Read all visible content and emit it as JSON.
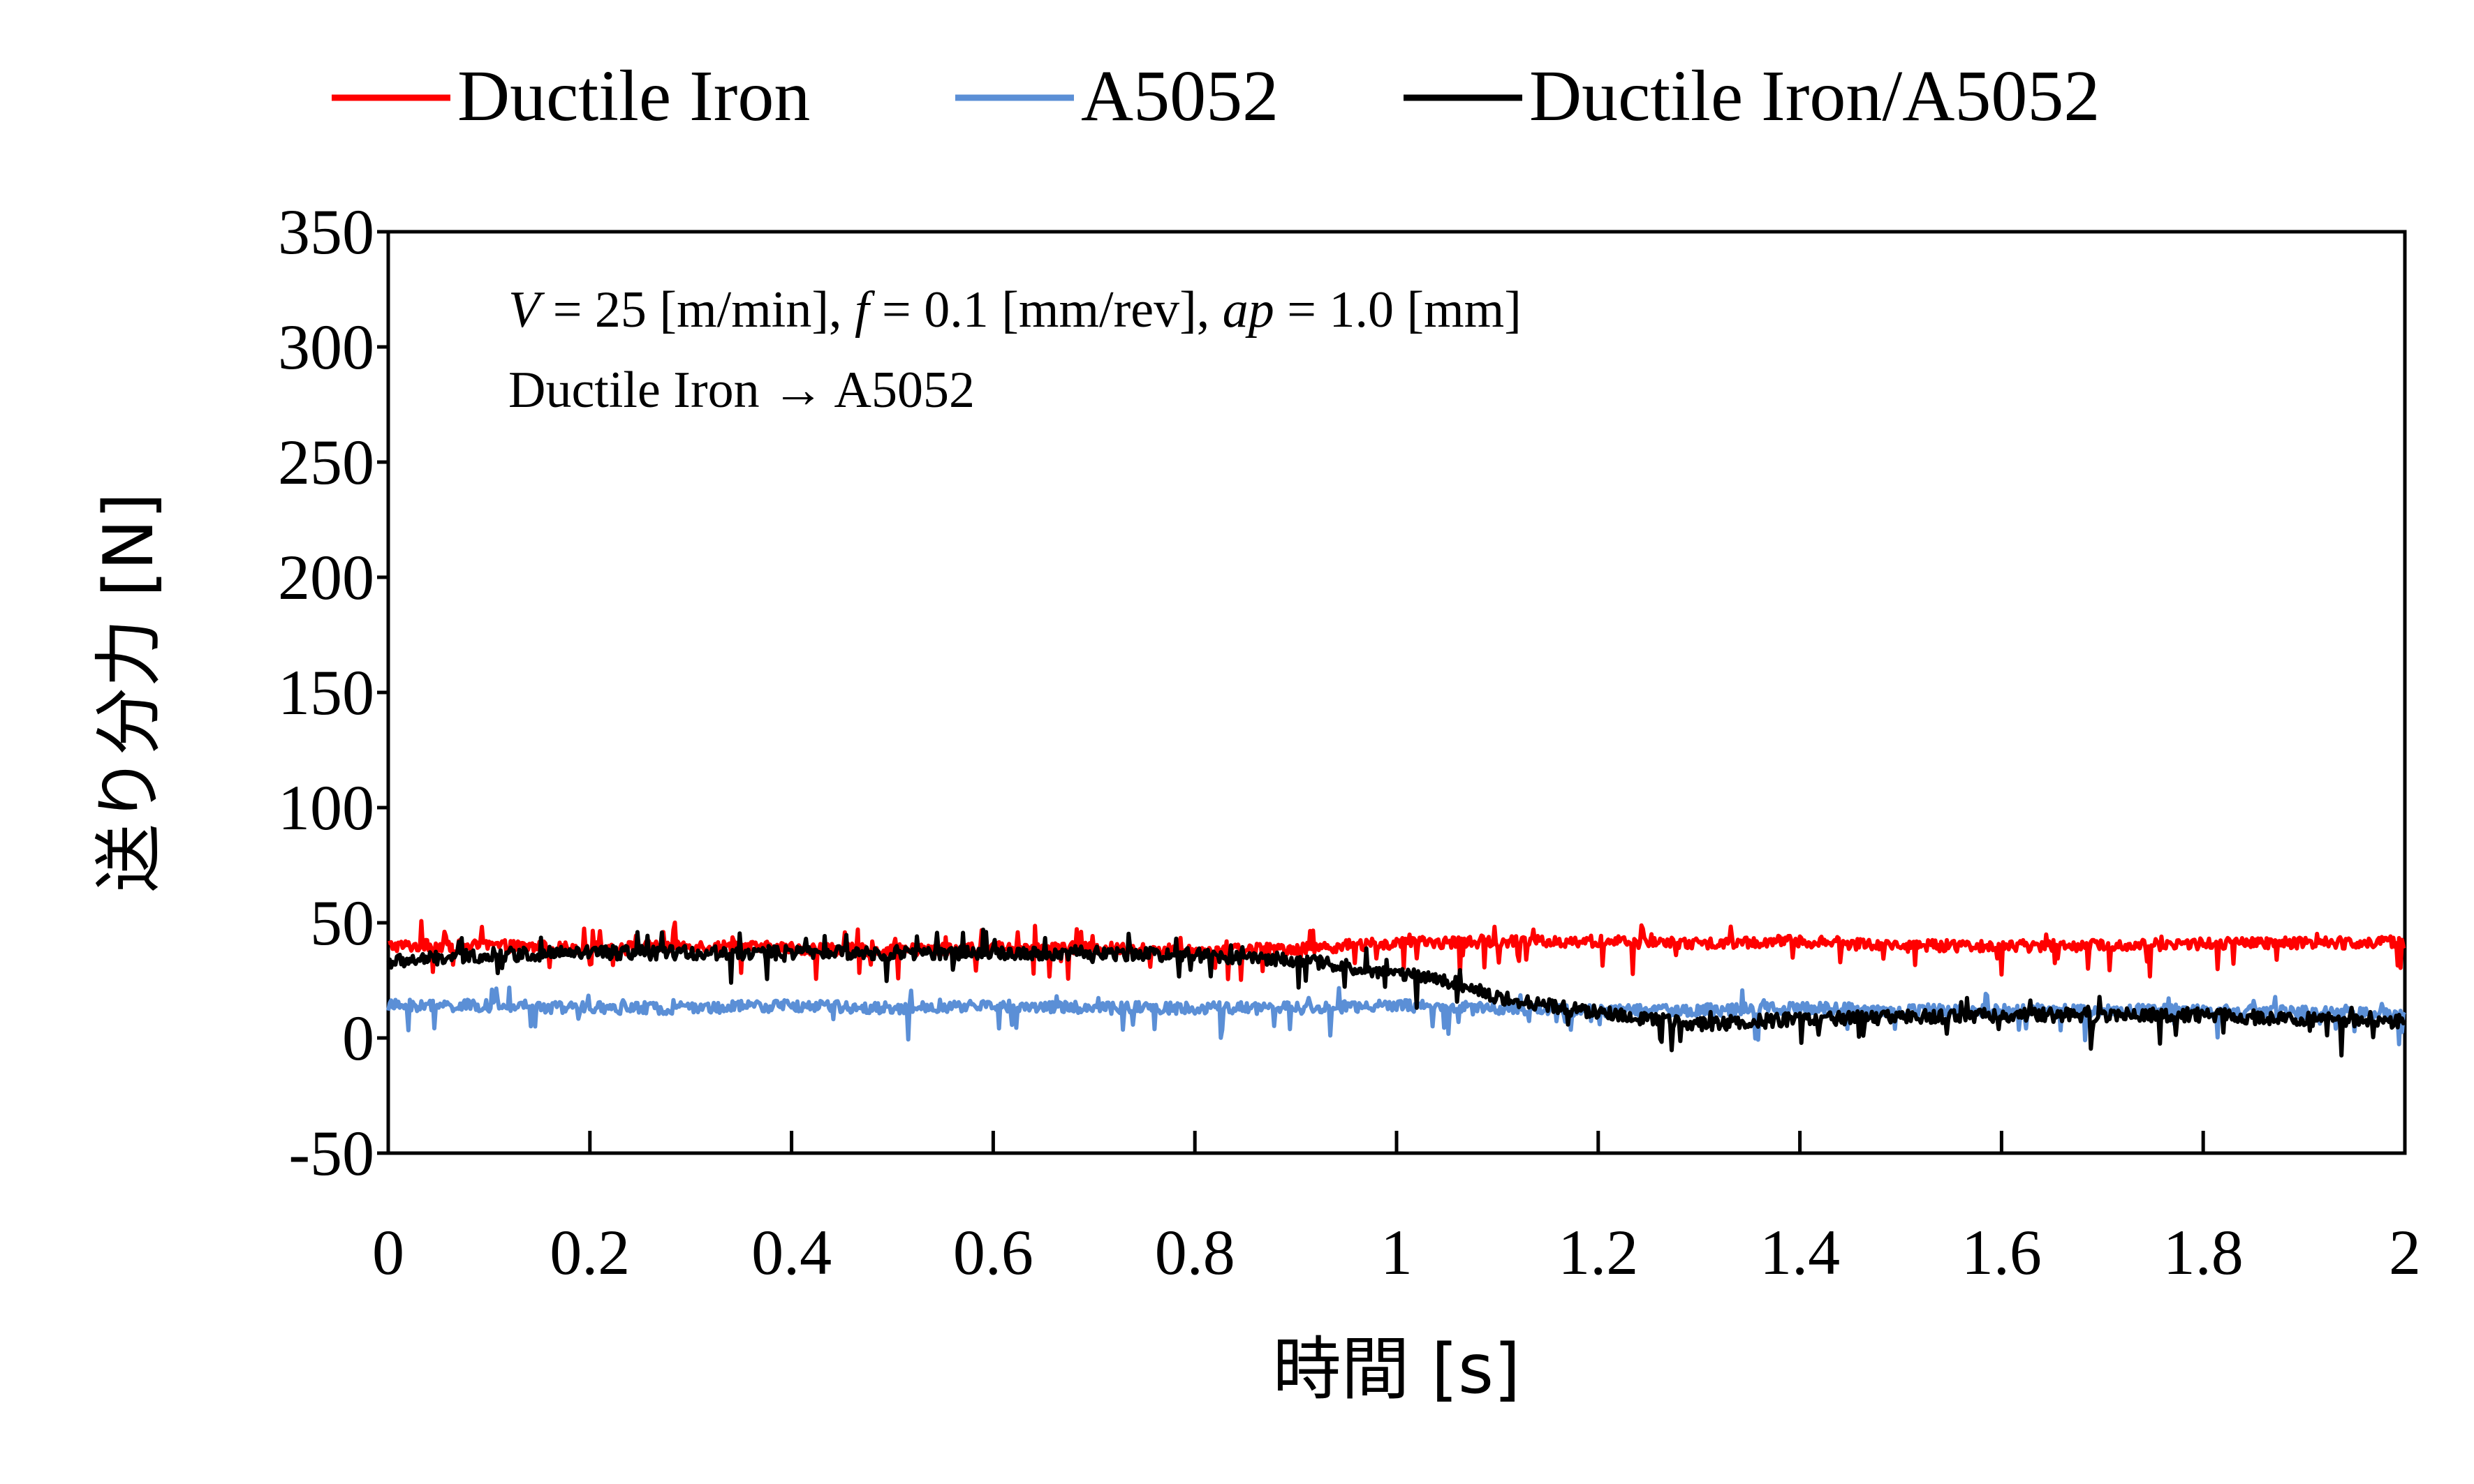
{
  "chart_data": {
    "type": "line",
    "title": "",
    "xlabel": "時間 [s]",
    "ylabel": "送り分力 [N]",
    "xlim": [
      0,
      2
    ],
    "ylim": [
      -50,
      350
    ],
    "x_ticks": [
      0,
      0.2,
      0.4,
      0.6,
      0.8,
      1,
      1.2,
      1.4,
      1.6,
      1.8,
      2
    ],
    "x_tick_labels": [
      "0",
      "0.2",
      "0.4",
      "0.6",
      "0.8",
      "1",
      "1.2",
      "1.4",
      "1.6",
      "1.8",
      "2"
    ],
    "y_ticks": [
      -50,
      0,
      50,
      100,
      150,
      200,
      250,
      300,
      350
    ],
    "y_tick_labels": [
      "-50",
      "0",
      "50",
      "100",
      "150",
      "200",
      "250",
      "300",
      "350"
    ],
    "grid": false,
    "legend_position": "top",
    "annotation": {
      "condition_parts": [
        {
          "text": "V",
          "italic": true
        },
        {
          "text": " = 25 [m/min], ",
          "italic": false
        },
        {
          "text": "f",
          "italic": true
        },
        {
          "text": " = 0.1 [mm/rev], ",
          "italic": false
        },
        {
          "text": "ap",
          "italic": true
        },
        {
          "text": " = 1.0 [mm]",
          "italic": false
        }
      ],
      "line2": "Ductile Iron → A5052"
    },
    "series": [
      {
        "name": "Ductile Iron",
        "color": "#ff0000",
        "x": [
          0,
          0.1,
          0.2,
          0.3,
          0.4,
          0.5,
          0.6,
          0.7,
          0.8,
          0.9,
          1.0,
          1.1,
          1.2,
          1.3,
          1.4,
          1.5,
          1.6,
          1.7,
          1.8,
          1.9,
          2.0
        ],
        "y": [
          40,
          40,
          39,
          40,
          39,
          38,
          39,
          39,
          38,
          39,
          41,
          42,
          42,
          41,
          42,
          40,
          40,
          40,
          41,
          41,
          42
        ]
      },
      {
        "name": "A5052",
        "color": "#5b8fd6",
        "x": [
          0,
          0.1,
          0.2,
          0.3,
          0.4,
          0.5,
          0.6,
          0.7,
          0.8,
          0.9,
          1.0,
          1.1,
          1.2,
          1.3,
          1.4,
          1.5,
          1.6,
          1.7,
          1.8,
          1.9,
          2.0
        ],
        "y": [
          14,
          14,
          13,
          13,
          14,
          13,
          14,
          13,
          13,
          13,
          14,
          13,
          12,
          12,
          13,
          12,
          12,
          12,
          12,
          11,
          10
        ]
      },
      {
        "name": "Ductile Iron/A5052",
        "color": "#000000",
        "x": [
          0,
          0.1,
          0.2,
          0.3,
          0.4,
          0.5,
          0.6,
          0.7,
          0.8,
          0.9,
          0.95,
          1.0,
          1.05,
          1.1,
          1.15,
          1.2,
          1.25,
          1.3,
          1.4,
          1.5,
          1.6,
          1.7,
          1.8,
          1.9,
          2.0
        ],
        "y": [
          33,
          36,
          37,
          37,
          37,
          37,
          37,
          37,
          36,
          34,
          31,
          28,
          25,
          18,
          14,
          11,
          8,
          6,
          8,
          9,
          10,
          10,
          10,
          8,
          7
        ]
      }
    ]
  }
}
